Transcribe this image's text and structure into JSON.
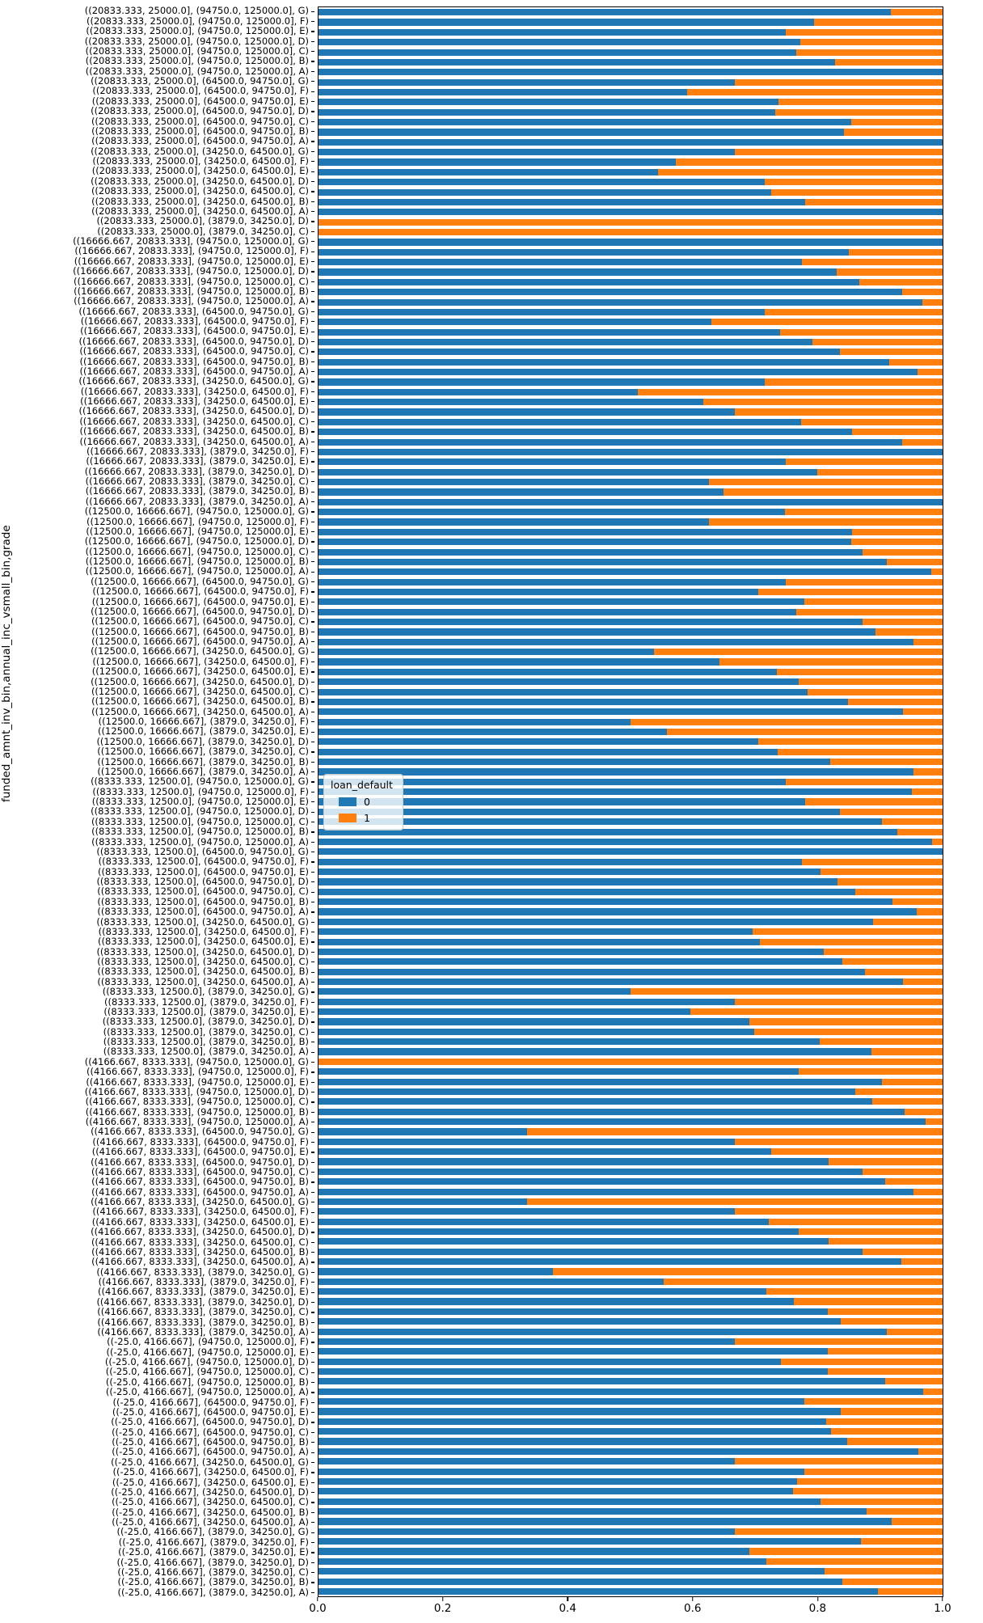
{
  "y_axis_label": "funded_amnt_inv_bin,annual_inc_vsmall_bin,grade",
  "x_axis": {
    "ticks": [
      "0.0",
      "0.2",
      "0.4",
      "0.6",
      "0.8",
      "1.0"
    ]
  },
  "legend": {
    "title": "loan_default",
    "items": [
      {
        "label": "0",
        "color": "#1f77b4"
      },
      {
        "label": "1",
        "color": "#ff7f0e"
      }
    ]
  },
  "colors": {
    "default0": "#1f77b4",
    "default1": "#ff7f0e",
    "spine": "#000000"
  },
  "chart_data": {
    "type": "bar",
    "orientation": "horizontal",
    "stacked": true,
    "normalized": true,
    "xlim": [
      0.0,
      1.0
    ],
    "xlabel": "",
    "ylabel": "funded_amnt_inv_bin,annual_inc_vsmall_bin,grade",
    "legend_position": "center-left",
    "grid": false,
    "series_names": [
      "0",
      "1"
    ],
    "rows_note": "rows listed top-to-bottom; values = [proportion loan_default=0 (blue), proportion loan_default=1 (orange)]",
    "rows": [
      [
        "((20833.333, 25000.0], (94750.0, 125000.0], G)",
        0.917,
        0.083
      ],
      [
        "((20833.333, 25000.0], (94750.0, 125000.0], F)",
        0.794,
        0.206
      ],
      [
        "((20833.333, 25000.0], (94750.0, 125000.0], E)",
        0.749,
        0.251
      ],
      [
        "((20833.333, 25000.0], (94750.0, 125000.0], D)",
        0.772,
        0.228
      ],
      [
        "((20833.333, 25000.0], (94750.0, 125000.0], C)",
        0.766,
        0.234
      ],
      [
        "((20833.333, 25000.0], (94750.0, 125000.0], B)",
        0.828,
        0.172
      ],
      [
        "((20833.333, 25000.0], (94750.0, 125000.0], A)",
        1.0,
        0.0
      ],
      [
        "((20833.333, 25000.0], (64500.0, 94750.0], G)",
        0.667,
        0.333
      ],
      [
        "((20833.333, 25000.0], (64500.0, 94750.0], F)",
        0.591,
        0.409
      ],
      [
        "((20833.333, 25000.0], (64500.0, 94750.0], E)",
        0.737,
        0.263
      ],
      [
        "((20833.333, 25000.0], (64500.0, 94750.0], D)",
        0.732,
        0.268
      ],
      [
        "((20833.333, 25000.0], (64500.0, 94750.0], C)",
        0.853,
        0.147
      ],
      [
        "((20833.333, 25000.0], (64500.0, 94750.0], B)",
        0.842,
        0.158
      ],
      [
        "((20833.333, 25000.0], (64500.0, 94750.0], A)",
        1.0,
        0.0
      ],
      [
        "((20833.333, 25000.0], (34250.0, 64500.0], G)",
        0.667,
        0.333
      ],
      [
        "((20833.333, 25000.0], (34250.0, 64500.0], F)",
        0.572,
        0.428
      ],
      [
        "((20833.333, 25000.0], (34250.0, 64500.0], E)",
        0.544,
        0.456
      ],
      [
        "((20833.333, 25000.0], (34250.0, 64500.0], D)",
        0.715,
        0.285
      ],
      [
        "((20833.333, 25000.0], (34250.0, 64500.0], C)",
        0.725,
        0.275
      ],
      [
        "((20833.333, 25000.0], (34250.0, 64500.0], B)",
        0.78,
        0.22
      ],
      [
        "((20833.333, 25000.0], (34250.0, 64500.0], A)",
        1.0,
        0.0
      ],
      [
        "((20833.333, 25000.0], (3879.0, 34250.0], D)",
        0.0,
        1.0
      ],
      [
        "((20833.333, 25000.0], (3879.0, 34250.0], C)",
        0.0,
        1.0
      ],
      [
        "((16666.667, 20833.333], (94750.0, 125000.0], G)",
        1.0,
        0.0
      ],
      [
        "((16666.667, 20833.333], (94750.0, 125000.0], F)",
        0.85,
        0.15
      ],
      [
        "((16666.667, 20833.333], (94750.0, 125000.0], E)",
        0.775,
        0.225
      ],
      [
        "((16666.667, 20833.333], (94750.0, 125000.0], D)",
        0.83,
        0.17
      ],
      [
        "((16666.667, 20833.333], (94750.0, 125000.0], C)",
        0.867,
        0.133
      ],
      [
        "((16666.667, 20833.333], (94750.0, 125000.0], B)",
        0.935,
        0.065
      ],
      [
        "((16666.667, 20833.333], (94750.0, 125000.0], A)",
        0.968,
        0.032
      ],
      [
        "((16666.667, 20833.333], (64500.0, 94750.0], G)",
        0.715,
        0.285
      ],
      [
        "((16666.667, 20833.333], (64500.0, 94750.0], F)",
        0.63,
        0.37
      ],
      [
        "((16666.667, 20833.333], (64500.0, 94750.0], E)",
        0.739,
        0.261
      ],
      [
        "((16666.667, 20833.333], (64500.0, 94750.0], D)",
        0.792,
        0.208
      ],
      [
        "((16666.667, 20833.333], (64500.0, 94750.0], C)",
        0.835,
        0.165
      ],
      [
        "((16666.667, 20833.333], (64500.0, 94750.0], B)",
        0.915,
        0.085
      ],
      [
        "((16666.667, 20833.333], (64500.0, 94750.0], A)",
        0.96,
        0.04
      ],
      [
        "((16666.667, 20833.333], (34250.0, 64500.0], G)",
        0.715,
        0.285
      ],
      [
        "((16666.667, 20833.333], (34250.0, 64500.0], F)",
        0.512,
        0.488
      ],
      [
        "((16666.667, 20833.333], (34250.0, 64500.0], E)",
        0.616,
        0.384
      ],
      [
        "((16666.667, 20833.333], (34250.0, 64500.0], D)",
        0.667,
        0.333
      ],
      [
        "((16666.667, 20833.333], (34250.0, 64500.0], C)",
        0.773,
        0.227
      ],
      [
        "((16666.667, 20833.333], (34250.0, 64500.0], B)",
        0.855,
        0.145
      ],
      [
        "((16666.667, 20833.333], (34250.0, 64500.0], A)",
        0.935,
        0.065
      ],
      [
        "((16666.667, 20833.333], (3879.0, 34250.0], F)",
        1.0,
        0.0
      ],
      [
        "((16666.667, 20833.333], (3879.0, 34250.0], E)",
        0.749,
        0.251
      ],
      [
        "((16666.667, 20833.333], (3879.0, 34250.0], D)",
        0.799,
        0.201
      ],
      [
        "((16666.667, 20833.333], (3879.0, 34250.0], C)",
        0.625,
        0.375
      ],
      [
        "((16666.667, 20833.333], (3879.0, 34250.0], B)",
        0.649,
        0.351
      ],
      [
        "((16666.667, 20833.333], (3879.0, 34250.0], A)",
        1.0,
        0.0
      ],
      [
        "((12500.0, 16666.667], (94750.0, 125000.0], G)",
        0.748,
        0.252
      ],
      [
        "((12500.0, 16666.667], (94750.0, 125000.0], F)",
        0.625,
        0.375
      ],
      [
        "((12500.0, 16666.667], (94750.0, 125000.0], E)",
        0.855,
        0.145
      ],
      [
        "((12500.0, 16666.667], (94750.0, 125000.0], D)",
        0.854,
        0.146
      ],
      [
        "((12500.0, 16666.667], (94750.0, 125000.0], C)",
        0.872,
        0.128
      ],
      [
        "((12500.0, 16666.667], (94750.0, 125000.0], B)",
        0.91,
        0.09
      ],
      [
        "((12500.0, 16666.667], (94750.0, 125000.0], A)",
        0.982,
        0.018
      ],
      [
        "((12500.0, 16666.667], (64500.0, 94750.0], G)",
        0.749,
        0.251
      ],
      [
        "((12500.0, 16666.667], (64500.0, 94750.0], F)",
        0.705,
        0.295
      ],
      [
        "((12500.0, 16666.667], (64500.0, 94750.0], E)",
        0.778,
        0.222
      ],
      [
        "((12500.0, 16666.667], (64500.0, 94750.0], D)",
        0.766,
        0.234
      ],
      [
        "((12500.0, 16666.667], (64500.0, 94750.0], C)",
        0.872,
        0.128
      ],
      [
        "((12500.0, 16666.667], (64500.0, 94750.0], B)",
        0.893,
        0.107
      ],
      [
        "((12500.0, 16666.667], (64500.0, 94750.0], A)",
        0.954,
        0.046
      ],
      [
        "((12500.0, 16666.667], (34250.0, 64500.0], G)",
        0.538,
        0.462
      ],
      [
        "((12500.0, 16666.667], (34250.0, 64500.0], F)",
        0.643,
        0.357
      ],
      [
        "((12500.0, 16666.667], (34250.0, 64500.0], E)",
        0.734,
        0.266
      ],
      [
        "((12500.0, 16666.667], (34250.0, 64500.0], D)",
        0.77,
        0.23
      ],
      [
        "((12500.0, 16666.667], (34250.0, 64500.0], C)",
        0.784,
        0.216
      ],
      [
        "((12500.0, 16666.667], (34250.0, 64500.0], B)",
        0.848,
        0.152
      ],
      [
        "((12500.0, 16666.667], (34250.0, 64500.0], A)",
        0.936,
        0.064
      ],
      [
        "((12500.0, 16666.667], (3879.0, 34250.0], F)",
        0.5,
        0.5
      ],
      [
        "((12500.0, 16666.667], (3879.0, 34250.0], E)",
        0.558,
        0.442
      ],
      [
        "((12500.0, 16666.667], (3879.0, 34250.0], D)",
        0.705,
        0.295
      ],
      [
        "((12500.0, 16666.667], (3879.0, 34250.0], C)",
        0.736,
        0.264
      ],
      [
        "((12500.0, 16666.667], (3879.0, 34250.0], B)",
        0.82,
        0.18
      ],
      [
        "((12500.0, 16666.667], (3879.0, 34250.0], A)",
        0.954,
        0.046
      ],
      [
        "((8333.333, 12500.0], (94750.0, 125000.0], G)",
        0.749,
        0.251
      ],
      [
        "((8333.333, 12500.0], (94750.0, 125000.0], F)",
        0.951,
        0.049
      ],
      [
        "((8333.333, 12500.0], (94750.0, 125000.0], E)",
        0.78,
        0.22
      ],
      [
        "((8333.333, 12500.0], (94750.0, 125000.0], D)",
        0.836,
        0.164
      ],
      [
        "((8333.333, 12500.0], (94750.0, 125000.0], C)",
        0.903,
        0.097
      ],
      [
        "((8333.333, 12500.0], (94750.0, 125000.0], B)",
        0.928,
        0.072
      ],
      [
        "((8333.333, 12500.0], (94750.0, 125000.0], A)",
        0.983,
        0.017
      ],
      [
        "((8333.333, 12500.0], (64500.0, 94750.0], G)",
        1.0,
        0.0
      ],
      [
        "((8333.333, 12500.0], (64500.0, 94750.0], F)",
        0.775,
        0.225
      ],
      [
        "((8333.333, 12500.0], (64500.0, 94750.0], E)",
        0.804,
        0.196
      ],
      [
        "((8333.333, 12500.0], (64500.0, 94750.0], D)",
        0.831,
        0.169
      ],
      [
        "((8333.333, 12500.0], (64500.0, 94750.0], C)",
        0.86,
        0.14
      ],
      [
        "((8333.333, 12500.0], (64500.0, 94750.0], B)",
        0.92,
        0.08
      ],
      [
        "((8333.333, 12500.0], (64500.0, 94750.0], A)",
        0.958,
        0.042
      ],
      [
        "((8333.333, 12500.0], (34250.0, 64500.0], G)",
        0.889,
        0.111
      ],
      [
        "((8333.333, 12500.0], (34250.0, 64500.0], F)",
        0.696,
        0.304
      ],
      [
        "((8333.333, 12500.0], (34250.0, 64500.0], E)",
        0.707,
        0.293
      ],
      [
        "((8333.333, 12500.0], (34250.0, 64500.0], D)",
        0.809,
        0.191
      ],
      [
        "((8333.333, 12500.0], (34250.0, 64500.0], C)",
        0.839,
        0.161
      ],
      [
        "((8333.333, 12500.0], (34250.0, 64500.0], B)",
        0.876,
        0.124
      ],
      [
        "((8333.333, 12500.0], (34250.0, 64500.0], A)",
        0.936,
        0.064
      ],
      [
        "((8333.333, 12500.0], (3879.0, 34250.0], G)",
        0.5,
        0.5
      ],
      [
        "((8333.333, 12500.0], (3879.0, 34250.0], F)",
        0.667,
        0.333
      ],
      [
        "((8333.333, 12500.0], (3879.0, 34250.0], E)",
        0.596,
        0.404
      ],
      [
        "((8333.333, 12500.0], (3879.0, 34250.0], D)",
        0.69,
        0.31
      ],
      [
        "((8333.333, 12500.0], (3879.0, 34250.0], C)",
        0.698,
        0.302
      ],
      [
        "((8333.333, 12500.0], (3879.0, 34250.0], B)",
        0.803,
        0.197
      ],
      [
        "((8333.333, 12500.0], (3879.0, 34250.0], A)",
        0.886,
        0.114
      ],
      [
        "((4166.667, 8333.333], (94750.0, 125000.0], G)",
        0.0,
        1.0
      ],
      [
        "((4166.667, 8333.333], (94750.0, 125000.0], F)",
        0.77,
        0.23
      ],
      [
        "((4166.667, 8333.333], (94750.0, 125000.0], E)",
        0.903,
        0.097
      ],
      [
        "((4166.667, 8333.333], (94750.0, 125000.0], D)",
        0.86,
        0.14
      ],
      [
        "((4166.667, 8333.333], (94750.0, 125000.0], C)",
        0.887,
        0.113
      ],
      [
        "((4166.667, 8333.333], (94750.0, 125000.0], B)",
        0.939,
        0.061
      ],
      [
        "((4166.667, 8333.333], (94750.0, 125000.0], A)",
        0.973,
        0.027
      ],
      [
        "((4166.667, 8333.333], (64500.0, 94750.0], G)",
        0.334,
        0.666
      ],
      [
        "((4166.667, 8333.333], (64500.0, 94750.0], F)",
        0.667,
        0.333
      ],
      [
        "((4166.667, 8333.333], (64500.0, 94750.0], E)",
        0.726,
        0.274
      ],
      [
        "((4166.667, 8333.333], (64500.0, 94750.0], D)",
        0.818,
        0.182
      ],
      [
        "((4166.667, 8333.333], (64500.0, 94750.0], C)",
        0.872,
        0.128
      ],
      [
        "((4166.667, 8333.333], (64500.0, 94750.0], B)",
        0.908,
        0.092
      ],
      [
        "((4166.667, 8333.333], (64500.0, 94750.0], A)",
        0.953,
        0.047
      ],
      [
        "((4166.667, 8333.333], (34250.0, 64500.0], G)",
        0.334,
        0.666
      ],
      [
        "((4166.667, 8333.333], (34250.0, 64500.0], F)",
        0.667,
        0.333
      ],
      [
        "((4166.667, 8333.333], (34250.0, 64500.0], E)",
        0.721,
        0.279
      ],
      [
        "((4166.667, 8333.333], (34250.0, 64500.0], D)",
        0.77,
        0.23
      ],
      [
        "((4166.667, 8333.333], (34250.0, 64500.0], C)",
        0.818,
        0.182
      ],
      [
        "((4166.667, 8333.333], (34250.0, 64500.0], B)",
        0.872,
        0.128
      ],
      [
        "((4166.667, 8333.333], (34250.0, 64500.0], A)",
        0.934,
        0.066
      ],
      [
        "((4166.667, 8333.333], (3879.0, 34250.0], G)",
        0.376,
        0.624
      ],
      [
        "((4166.667, 8333.333], (3879.0, 34250.0], F)",
        0.553,
        0.447
      ],
      [
        "((4166.667, 8333.333], (3879.0, 34250.0], E)",
        0.717,
        0.283
      ],
      [
        "((4166.667, 8333.333], (3879.0, 34250.0], D)",
        0.762,
        0.238
      ],
      [
        "((4166.667, 8333.333], (3879.0, 34250.0], C)",
        0.816,
        0.184
      ],
      [
        "((4166.667, 8333.333], (3879.0, 34250.0], B)",
        0.837,
        0.163
      ],
      [
        "((4166.667, 8333.333], (3879.0, 34250.0], A)",
        0.91,
        0.09
      ],
      [
        "((-25.0, 4166.667], (94750.0, 125000.0], F)",
        0.667,
        0.333
      ],
      [
        "((-25.0, 4166.667], (94750.0, 125000.0], E)",
        0.816,
        0.184
      ],
      [
        "((-25.0, 4166.667], (94750.0, 125000.0], D)",
        0.741,
        0.259
      ],
      [
        "((-25.0, 4166.667], (94750.0, 125000.0], C)",
        0.816,
        0.184
      ],
      [
        "((-25.0, 4166.667], (94750.0, 125000.0], B)",
        0.908,
        0.092
      ],
      [
        "((-25.0, 4166.667], (94750.0, 125000.0], A)",
        0.969,
        0.031
      ],
      [
        "((-25.0, 4166.667], (64500.0, 94750.0], F)",
        0.778,
        0.222
      ],
      [
        "((-25.0, 4166.667], (64500.0, 94750.0], E)",
        0.837,
        0.163
      ],
      [
        "((-25.0, 4166.667], (64500.0, 94750.0], D)",
        0.813,
        0.187
      ],
      [
        "((-25.0, 4166.667], (64500.0, 94750.0], C)",
        0.821,
        0.179
      ],
      [
        "((-25.0, 4166.667], (64500.0, 94750.0], B)",
        0.847,
        0.153
      ],
      [
        "((-25.0, 4166.667], (64500.0, 94750.0], A)",
        0.961,
        0.039
      ],
      [
        "((-25.0, 4166.667], (34250.0, 64500.0], G)",
        0.667,
        0.333
      ],
      [
        "((-25.0, 4166.667], (34250.0, 64500.0], F)",
        0.778,
        0.222
      ],
      [
        "((-25.0, 4166.667], (34250.0, 64500.0], E)",
        0.767,
        0.233
      ],
      [
        "((-25.0, 4166.667], (34250.0, 64500.0], D)",
        0.76,
        0.24
      ],
      [
        "((-25.0, 4166.667], (34250.0, 64500.0], C)",
        0.805,
        0.195
      ],
      [
        "((-25.0, 4166.667], (34250.0, 64500.0], B)",
        0.878,
        0.122
      ],
      [
        "((-25.0, 4166.667], (34250.0, 64500.0], A)",
        0.919,
        0.081
      ],
      [
        "((-25.0, 4166.667], (3879.0, 34250.0], G)",
        0.667,
        0.333
      ],
      [
        "((-25.0, 4166.667], (3879.0, 34250.0], F)",
        0.869,
        0.131
      ],
      [
        "((-25.0, 4166.667], (3879.0, 34250.0], E)",
        0.691,
        0.309
      ],
      [
        "((-25.0, 4166.667], (3879.0, 34250.0], D)",
        0.717,
        0.283
      ],
      [
        "((-25.0, 4166.667], (3879.0, 34250.0], C)",
        0.811,
        0.189
      ],
      [
        "((-25.0, 4166.667], (3879.0, 34250.0], B)",
        0.84,
        0.16
      ],
      [
        "((-25.0, 4166.667], (3879.0, 34250.0], A)",
        0.896,
        0.104
      ]
    ]
  }
}
